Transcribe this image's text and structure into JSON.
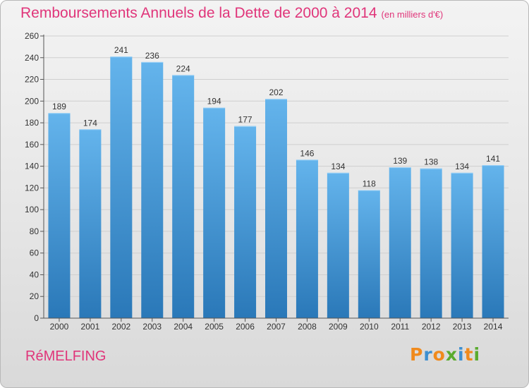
{
  "header": {
    "title": "Remboursements Annuels de la Dette de 2000 à 2014",
    "subtitle": "(en milliers d'€)"
  },
  "footer": {
    "commune": "RéMELFING",
    "logo": "Proxiti"
  },
  "colors": {
    "title": "#e0357a",
    "bar_top": "#64b4ec",
    "bar_bottom": "#2a78b8",
    "logo_letters": [
      "#f08a1c",
      "#3c8fd0",
      "#f08a1c",
      "#5aab2e",
      "#3c8fd0",
      "#f08a1c",
      "#5aab2e"
    ]
  },
  "chart_data": {
    "type": "bar",
    "title": "Remboursements Annuels de la Dette de 2000 à 2014",
    "subtitle": "(en milliers d'€)",
    "xlabel": "",
    "ylabel": "",
    "categories": [
      "2000",
      "2001",
      "2002",
      "2003",
      "2004",
      "2005",
      "2006",
      "2007",
      "2008",
      "2009",
      "2010",
      "2011",
      "2012",
      "2013",
      "2014"
    ],
    "values": [
      189,
      174,
      241,
      236,
      224,
      194,
      177,
      202,
      146,
      134,
      118,
      139,
      138,
      134,
      141
    ],
    "ylim": [
      0,
      260
    ],
    "yticks": [
      0,
      20,
      40,
      60,
      80,
      100,
      120,
      140,
      160,
      180,
      200,
      220,
      240,
      260
    ],
    "grid": true,
    "data_labels": true,
    "legend": "none"
  }
}
